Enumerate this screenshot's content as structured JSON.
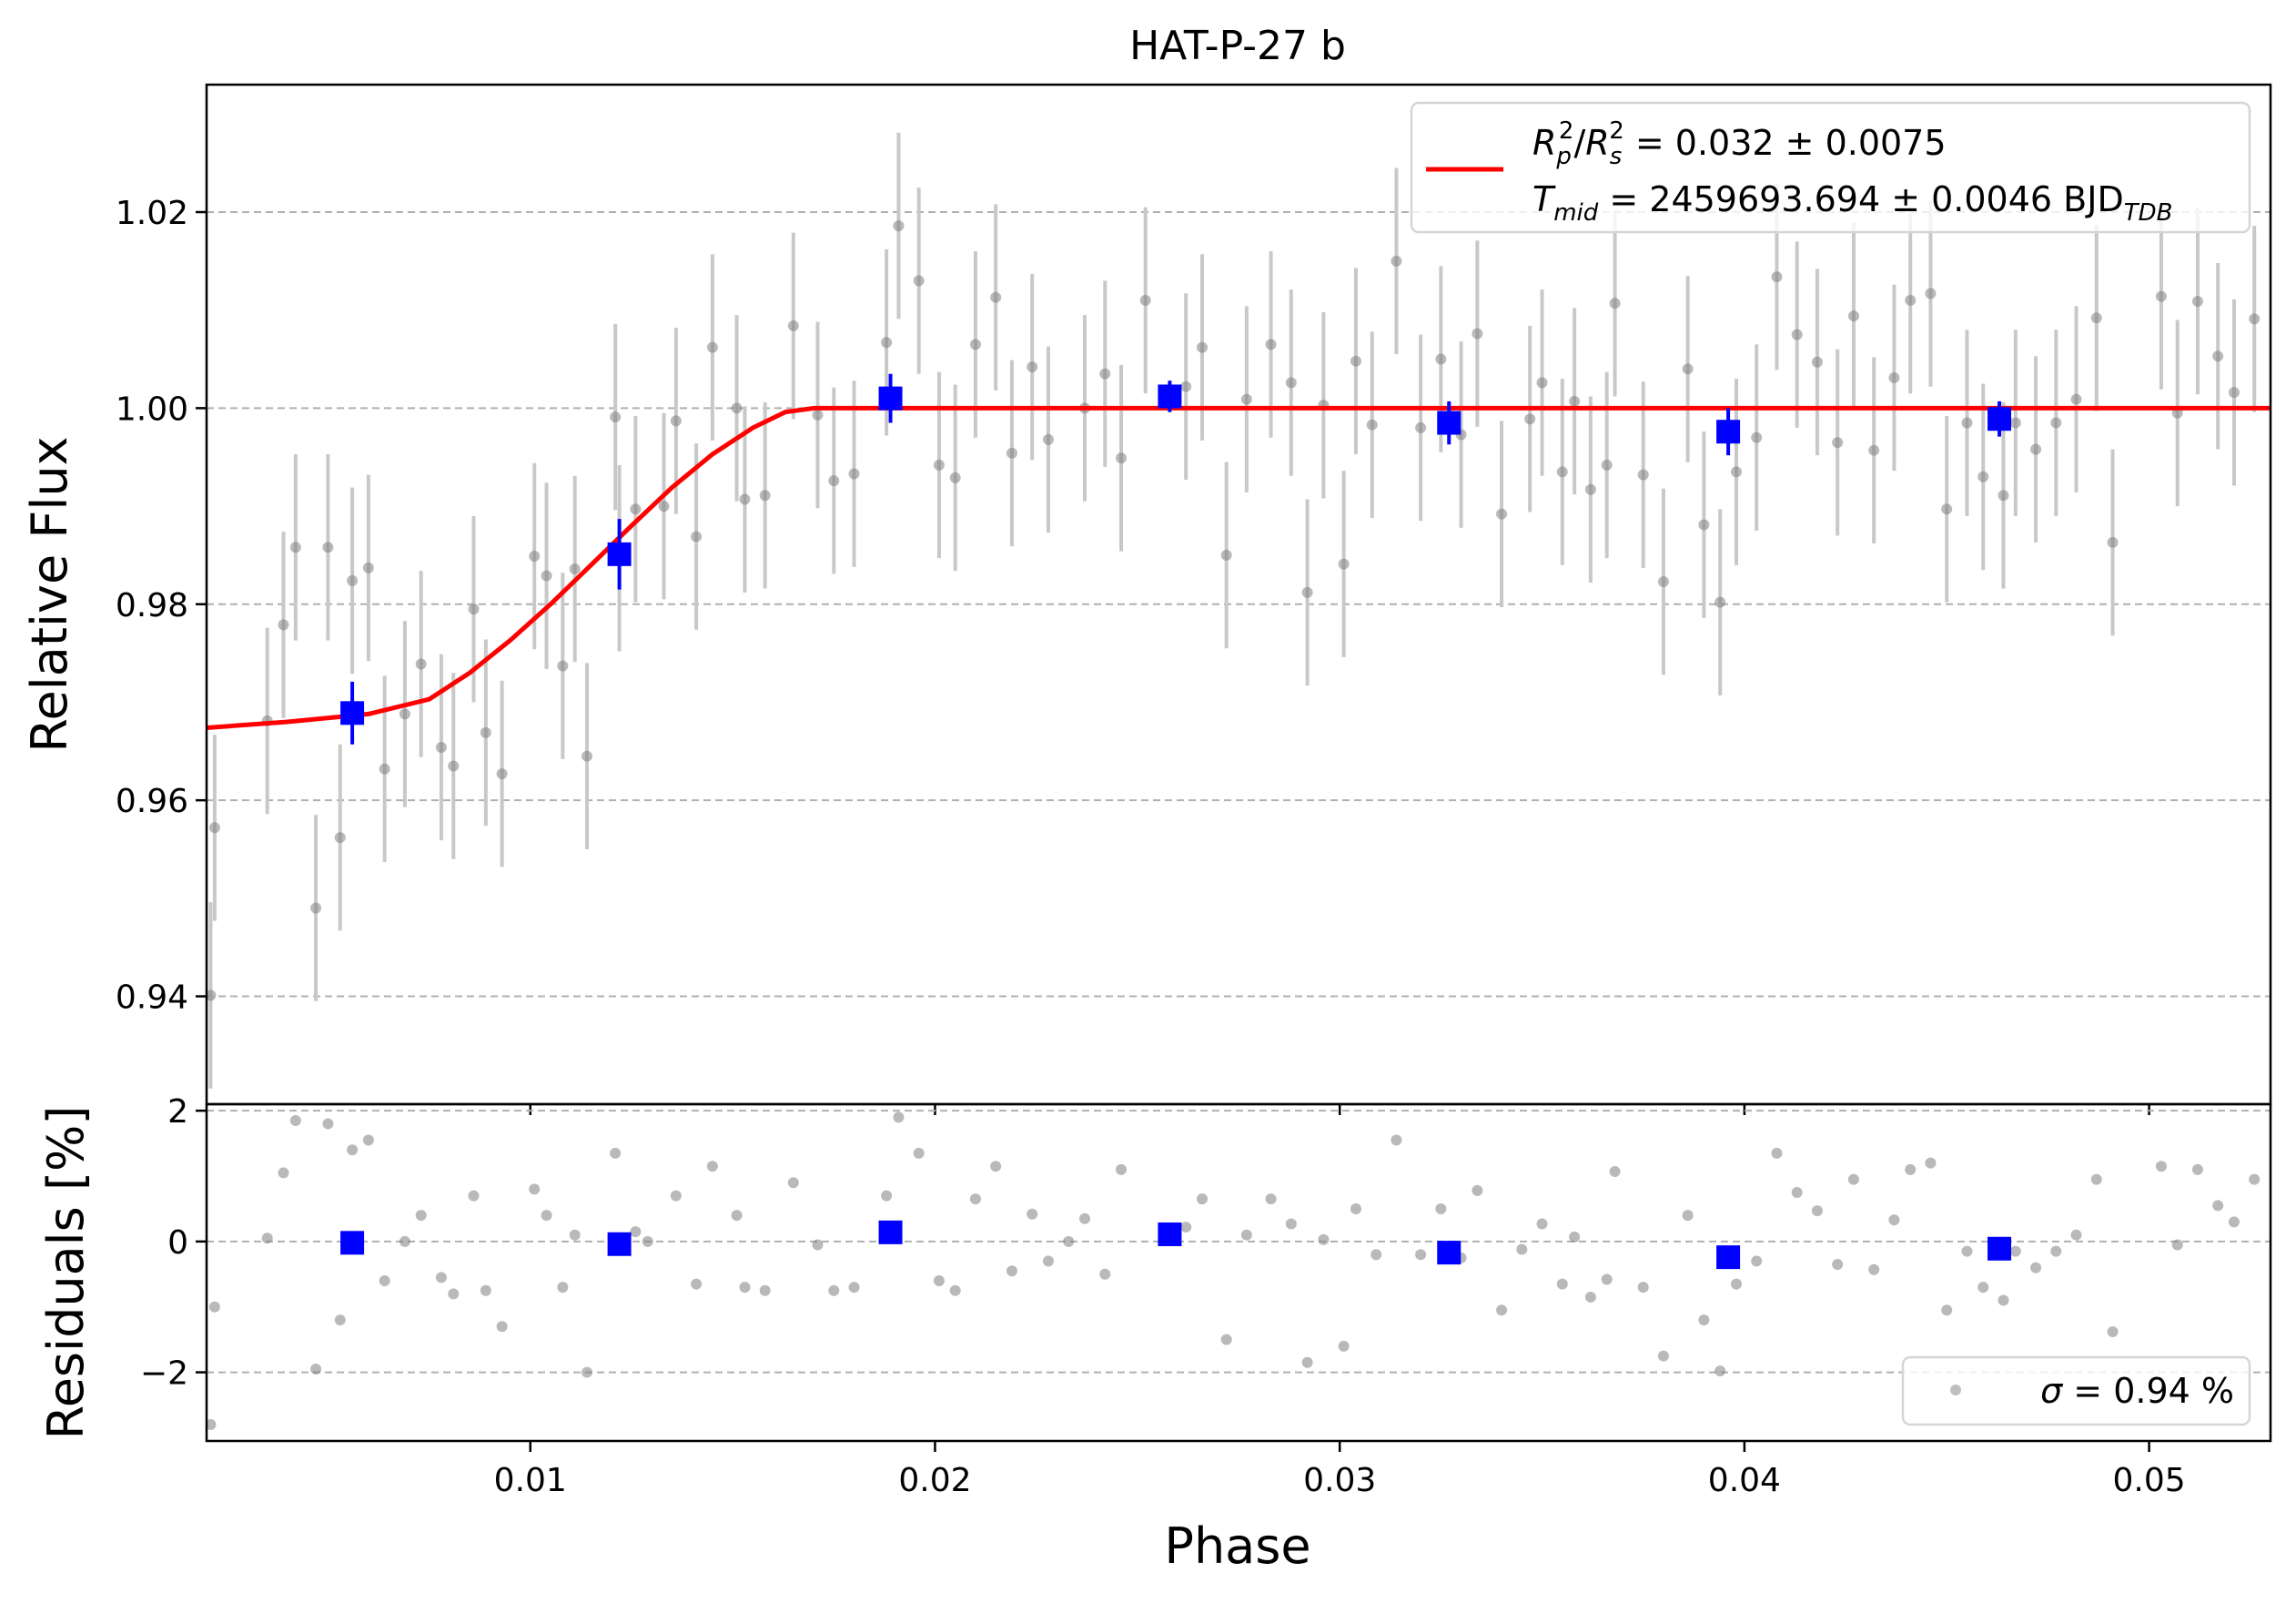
{
  "figure": {
    "title": "HAT-P-27 b",
    "xlabel": "Phase",
    "colors": {
      "model": "#ff0000",
      "binned": "#0000ff",
      "raw_point": "#7f7f7f",
      "raw_error": "#c8c8c8",
      "grid": "#b0b0b0"
    }
  },
  "chart_data": [
    {
      "type": "scatter",
      "panel": "light-curve",
      "ylabel": "Relative Flux",
      "xlim": [
        0.002,
        0.053
      ],
      "ylim": [
        0.929,
        1.033
      ],
      "x_ticks": [
        "0.01",
        "0.02",
        "0.03",
        "0.04",
        "0.05"
      ],
      "x_tick_values": [
        0.01,
        0.02,
        0.03,
        0.04,
        0.05
      ],
      "y_ticks": [
        "0.94",
        "0.96",
        "0.98",
        "1.00",
        "1.02"
      ],
      "y_tick_values": [
        0.94,
        0.96,
        0.98,
        1.0,
        1.02
      ],
      "grid": "horizontal-dashed",
      "legend_position": "top-right",
      "legend": {
        "line1": {
          "lhs": "R",
          "lhs_sub": "p",
          "lhs_sup": "2",
          "rhs": "R",
          "rhs_sub": "s",
          "rhs_sup": "2",
          "value": " = 0.032 ± 0.0075"
        },
        "line2": {
          "name": "T",
          "name_sub": "mid",
          "value": " = 2459693.694 ± 0.0046 BJD",
          "unit_sub": "TDB"
        }
      },
      "raw_points": [
        [
          0.0021,
          0.9401,
          0.0095
        ],
        [
          0.0022,
          0.9572,
          0.0095
        ],
        [
          0.0035,
          0.9681,
          0.0095
        ],
        [
          0.0039,
          0.9779,
          0.0095
        ],
        [
          0.0042,
          0.9858,
          0.0095
        ],
        [
          0.0047,
          0.949,
          0.0095
        ],
        [
          0.005,
          0.9858,
          0.0095
        ],
        [
          0.0053,
          0.9562,
          0.0095
        ],
        [
          0.0056,
          0.9824,
          0.0095
        ],
        [
          0.006,
          0.9837,
          0.0095
        ],
        [
          0.0064,
          0.9632,
          0.0095
        ],
        [
          0.0069,
          0.9688,
          0.0095
        ],
        [
          0.0073,
          0.9739,
          0.0095
        ],
        [
          0.0078,
          0.9654,
          0.0095
        ],
        [
          0.0081,
          0.9635,
          0.0095
        ],
        [
          0.0086,
          0.9795,
          0.0095
        ],
        [
          0.0089,
          0.9669,
          0.0095
        ],
        [
          0.0093,
          0.9627,
          0.0095
        ],
        [
          0.0101,
          0.9849,
          0.0095
        ],
        [
          0.0104,
          0.9829,
          0.0095
        ],
        [
          0.0108,
          0.9737,
          0.0095
        ],
        [
          0.0111,
          0.9836,
          0.0095
        ],
        [
          0.0114,
          0.9645,
          0.0095
        ],
        [
          0.0122,
          0.9847,
          0.0095
        ],
        [
          0.0121,
          0.9991,
          0.0095
        ],
        [
          0.0126,
          0.9897,
          0.0095
        ],
        [
          0.0133,
          0.99,
          0.0095
        ],
        [
          0.0136,
          0.9987,
          0.0095
        ],
        [
          0.0141,
          0.9869,
          0.0095
        ],
        [
          0.0145,
          1.0062,
          0.0095
        ],
        [
          0.0151,
          1.0,
          0.0095
        ],
        [
          0.0153,
          0.9907,
          0.0095
        ],
        [
          0.0158,
          0.9911,
          0.0095
        ],
        [
          0.0165,
          1.0084,
          0.0095
        ],
        [
          0.0171,
          0.9993,
          0.0095
        ],
        [
          0.0175,
          0.9926,
          0.0095
        ],
        [
          0.018,
          0.9933,
          0.0095
        ],
        [
          0.0188,
          1.0067,
          0.0095
        ],
        [
          0.0191,
          1.0186,
          0.0095
        ],
        [
          0.0196,
          1.013,
          0.0095
        ],
        [
          0.0201,
          0.9942,
          0.0095
        ],
        [
          0.0205,
          0.9929,
          0.0095
        ],
        [
          0.021,
          1.0065,
          0.0095
        ],
        [
          0.0215,
          1.0113,
          0.0095
        ],
        [
          0.0219,
          0.9954,
          0.0095
        ],
        [
          0.0224,
          1.0042,
          0.0095
        ],
        [
          0.0228,
          0.9968,
          0.0095
        ],
        [
          0.0237,
          1.0,
          0.0095
        ],
        [
          0.0242,
          1.0035,
          0.0095
        ],
        [
          0.0246,
          0.9949,
          0.0095
        ],
        [
          0.0252,
          1.011,
          0.0095
        ],
        [
          0.0262,
          1.0022,
          0.0095
        ],
        [
          0.0266,
          1.0062,
          0.0095
        ],
        [
          0.0272,
          0.985,
          0.0095
        ],
        [
          0.0277,
          1.0009,
          0.0095
        ],
        [
          0.0283,
          1.0065,
          0.0095
        ],
        [
          0.0288,
          1.0026,
          0.0095
        ],
        [
          0.0292,
          0.9812,
          0.0095
        ],
        [
          0.0296,
          1.0003,
          0.0095
        ],
        [
          0.0301,
          0.9841,
          0.0095
        ],
        [
          0.0304,
          1.0048,
          0.0095
        ],
        [
          0.0308,
          0.9983,
          0.0095
        ],
        [
          0.0314,
          1.015,
          0.0095
        ],
        [
          0.032,
          0.998,
          0.0095
        ],
        [
          0.0325,
          1.005,
          0.0095
        ],
        [
          0.033,
          0.9973,
          0.0095
        ],
        [
          0.0334,
          1.0076,
          0.0095
        ],
        [
          0.034,
          0.9892,
          0.0095
        ],
        [
          0.0347,
          0.9989,
          0.0095
        ],
        [
          0.035,
          1.0026,
          0.0095
        ],
        [
          0.0355,
          0.9935,
          0.0095
        ],
        [
          0.0358,
          1.0007,
          0.0095
        ],
        [
          0.0362,
          0.9917,
          0.0095
        ],
        [
          0.0366,
          0.9942,
          0.0095
        ],
        [
          0.0368,
          1.0107,
          0.0095
        ],
        [
          0.0375,
          0.9932,
          0.0095
        ],
        [
          0.038,
          0.9823,
          0.0095
        ],
        [
          0.0386,
          1.004,
          0.0095
        ],
        [
          0.039,
          0.9881,
          0.0095
        ],
        [
          0.0394,
          0.9802,
          0.0095
        ],
        [
          0.0398,
          0.9935,
          0.0095
        ],
        [
          0.0403,
          0.997,
          0.0095
        ],
        [
          0.0408,
          1.0134,
          0.0095
        ],
        [
          0.0413,
          1.0075,
          0.0095
        ],
        [
          0.0418,
          1.0047,
          0.0095
        ],
        [
          0.0423,
          0.9965,
          0.0095
        ],
        [
          0.0427,
          1.0094,
          0.0095
        ],
        [
          0.0432,
          0.9957,
          0.0095
        ],
        [
          0.0437,
          1.0031,
          0.0095
        ],
        [
          0.0441,
          1.011,
          0.0095
        ],
        [
          0.0446,
          1.0117,
          0.0095
        ],
        [
          0.045,
          0.9897,
          0.0095
        ],
        [
          0.0455,
          0.9985,
          0.0095
        ],
        [
          0.0459,
          0.993,
          0.0095
        ],
        [
          0.0464,
          0.9911,
          0.0095
        ],
        [
          0.0467,
          0.9985,
          0.0095
        ],
        [
          0.0472,
          0.9958,
          0.0095
        ],
        [
          0.0477,
          0.9985,
          0.0095
        ],
        [
          0.0482,
          1.0009,
          0.0095
        ],
        [
          0.0487,
          1.0092,
          0.0095
        ],
        [
          0.0491,
          0.9863,
          0.0095
        ],
        [
          0.0503,
          1.0114,
          0.0095
        ],
        [
          0.0507,
          0.9995,
          0.0095
        ],
        [
          0.0512,
          1.0109,
          0.0095
        ],
        [
          0.0517,
          1.0053,
          0.0095
        ],
        [
          0.0521,
          1.0016,
          0.0095
        ],
        [
          0.0526,
          1.0091,
          0.0095
        ]
      ],
      "binned_points": [
        [
          0.0056,
          0.9689,
          0.0032
        ],
        [
          0.0122,
          0.9851,
          0.0036
        ],
        [
          0.0189,
          1.001,
          0.0025
        ],
        [
          0.0258,
          1.0012,
          0.0016
        ],
        [
          0.0327,
          0.9985,
          0.0022
        ],
        [
          0.0396,
          0.9976,
          0.0024
        ],
        [
          0.0463,
          0.9989,
          0.0018
        ]
      ],
      "model": [
        [
          0.002,
          0.9674
        ],
        [
          0.004,
          0.968
        ],
        [
          0.006,
          0.9688
        ],
        [
          0.0075,
          0.9703
        ],
        [
          0.0085,
          0.973
        ],
        [
          0.0095,
          0.9763
        ],
        [
          0.0105,
          0.98
        ],
        [
          0.0115,
          0.984
        ],
        [
          0.0125,
          0.988
        ],
        [
          0.0135,
          0.9919
        ],
        [
          0.0145,
          0.9953
        ],
        [
          0.0155,
          0.998
        ],
        [
          0.0163,
          0.9996
        ],
        [
          0.017,
          1.0
        ],
        [
          0.053,
          1.0
        ]
      ]
    },
    {
      "type": "scatter",
      "panel": "residuals",
      "ylabel": "Residuals [%]",
      "xlim": [
        0.002,
        0.053
      ],
      "ylim": [
        -3.05,
        2.1
      ],
      "x_ticks": [
        "0.01",
        "0.02",
        "0.03",
        "0.04",
        "0.05"
      ],
      "x_tick_values": [
        0.01,
        0.02,
        0.03,
        0.04,
        0.05
      ],
      "y_ticks": [
        "−2",
        "0",
        "2"
      ],
      "y_tick_values": [
        -2,
        0,
        2
      ],
      "grid": "horizontal-dashed",
      "legend_position": "bottom-right",
      "legend": {
        "symbol": "σ",
        "value": " = 0.94 %"
      },
      "raw_points": [
        [
          0.0021,
          -2.8
        ],
        [
          0.0022,
          -1.0
        ],
        [
          0.0035,
          0.05
        ],
        [
          0.0039,
          1.05
        ],
        [
          0.0042,
          1.85
        ],
        [
          0.0047,
          -1.95
        ],
        [
          0.005,
          1.8
        ],
        [
          0.0053,
          -1.2
        ],
        [
          0.0056,
          1.4
        ],
        [
          0.006,
          1.55
        ],
        [
          0.0064,
          -0.6
        ],
        [
          0.0069,
          0.0
        ],
        [
          0.0073,
          0.4
        ],
        [
          0.0078,
          -0.55
        ],
        [
          0.0081,
          -0.8
        ],
        [
          0.0086,
          0.7
        ],
        [
          0.0089,
          -0.75
        ],
        [
          0.0093,
          -1.3
        ],
        [
          0.0101,
          0.8
        ],
        [
          0.0104,
          0.4
        ],
        [
          0.0108,
          -0.7
        ],
        [
          0.0111,
          0.1
        ],
        [
          0.0114,
          -2.0
        ],
        [
          0.0121,
          1.35
        ],
        [
          0.0126,
          0.15
        ],
        [
          0.0129,
          0.0
        ],
        [
          0.0136,
          0.7
        ],
        [
          0.0141,
          -0.65
        ],
        [
          0.0145,
          1.15
        ],
        [
          0.0151,
          0.4
        ],
        [
          0.0153,
          -0.7
        ],
        [
          0.0158,
          -0.75
        ],
        [
          0.0165,
          0.9
        ],
        [
          0.0171,
          -0.05
        ],
        [
          0.0175,
          -0.75
        ],
        [
          0.018,
          -0.7
        ],
        [
          0.0188,
          0.7
        ],
        [
          0.0191,
          1.9
        ],
        [
          0.0196,
          1.35
        ],
        [
          0.0201,
          -0.6
        ],
        [
          0.0205,
          -0.75
        ],
        [
          0.021,
          0.65
        ],
        [
          0.0215,
          1.15
        ],
        [
          0.0219,
          -0.45
        ],
        [
          0.0224,
          0.42
        ],
        [
          0.0228,
          -0.3
        ],
        [
          0.0233,
          0.0
        ],
        [
          0.0237,
          0.35
        ],
        [
          0.0242,
          -0.5
        ],
        [
          0.0246,
          1.1
        ],
        [
          0.0262,
          0.22
        ],
        [
          0.0266,
          0.65
        ],
        [
          0.0272,
          -1.5
        ],
        [
          0.0277,
          0.1
        ],
        [
          0.0283,
          0.65
        ],
        [
          0.0288,
          0.27
        ],
        [
          0.0292,
          -1.85
        ],
        [
          0.0296,
          0.03
        ],
        [
          0.0301,
          -1.6
        ],
        [
          0.0304,
          0.5
        ],
        [
          0.0309,
          -0.2
        ],
        [
          0.0314,
          1.55
        ],
        [
          0.032,
          -0.2
        ],
        [
          0.0325,
          0.5
        ],
        [
          0.033,
          -0.25
        ],
        [
          0.0334,
          0.78
        ],
        [
          0.034,
          -1.05
        ],
        [
          0.0345,
          -0.12
        ],
        [
          0.035,
          0.27
        ],
        [
          0.0355,
          -0.65
        ],
        [
          0.0358,
          0.07
        ],
        [
          0.0362,
          -0.85
        ],
        [
          0.0366,
          -0.58
        ],
        [
          0.0368,
          1.07
        ],
        [
          0.0375,
          -0.7
        ],
        [
          0.038,
          -1.75
        ],
        [
          0.0386,
          0.4
        ],
        [
          0.039,
          -1.2
        ],
        [
          0.0394,
          -1.98
        ],
        [
          0.0398,
          -0.65
        ],
        [
          0.0403,
          -0.3
        ],
        [
          0.0408,
          1.35
        ],
        [
          0.0413,
          0.75
        ],
        [
          0.0418,
          0.47
        ],
        [
          0.0423,
          -0.35
        ],
        [
          0.0427,
          0.95
        ],
        [
          0.0432,
          -0.43
        ],
        [
          0.0437,
          0.33
        ],
        [
          0.0441,
          1.1
        ],
        [
          0.0446,
          1.2
        ],
        [
          0.045,
          -1.05
        ],
        [
          0.0455,
          -0.15
        ],
        [
          0.0459,
          -0.7
        ],
        [
          0.0464,
          -0.9
        ],
        [
          0.0467,
          -0.15
        ],
        [
          0.0472,
          -0.4
        ],
        [
          0.0477,
          -0.15
        ],
        [
          0.0482,
          0.1
        ],
        [
          0.0487,
          0.95
        ],
        [
          0.0491,
          -1.38
        ],
        [
          0.0503,
          1.15
        ],
        [
          0.0507,
          -0.05
        ],
        [
          0.0512,
          1.1
        ],
        [
          0.0517,
          0.55
        ],
        [
          0.0521,
          0.3
        ],
        [
          0.0526,
          0.95
        ]
      ],
      "binned_points": [
        [
          0.0056,
          -0.02
        ],
        [
          0.0122,
          -0.04
        ],
        [
          0.0189,
          0.14
        ],
        [
          0.0258,
          0.11
        ],
        [
          0.0327,
          -0.17
        ],
        [
          0.0396,
          -0.24
        ],
        [
          0.0463,
          -0.11
        ]
      ]
    }
  ]
}
